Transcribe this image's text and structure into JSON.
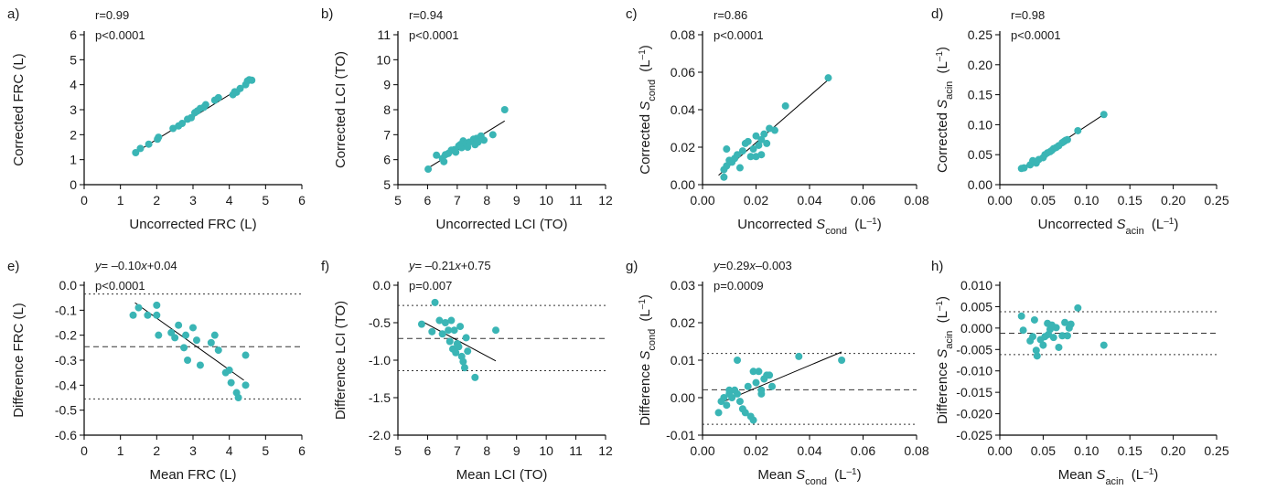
{
  "colors": {
    "point": "#3ab5b5",
    "axis": "#000000"
  },
  "chart_data": [
    {
      "type": "scatter",
      "panel": "a)",
      "xlabel": "Uncorrected FRC (L)",
      "ylabel": "Corrected FRC (L)",
      "xlim": [
        0,
        6
      ],
      "ylim": [
        0,
        6
      ],
      "xticks": [
        "0",
        "1",
        "2",
        "3",
        "4",
        "5",
        "6"
      ],
      "yticks": [
        "0",
        "1",
        "2",
        "3",
        "4",
        "5",
        "6"
      ],
      "stats": [
        "r=0.99",
        "p<0.0001"
      ],
      "fit": [
        [
          1.45,
          1.32
        ],
        [
          4.62,
          4.15
        ]
      ],
      "hlines": [],
      "points": [
        [
          1.42,
          1.28
        ],
        [
          1.55,
          1.45
        ],
        [
          1.78,
          1.62
        ],
        [
          2.02,
          1.82
        ],
        [
          2.05,
          1.9
        ],
        [
          2.45,
          2.25
        ],
        [
          2.6,
          2.35
        ],
        [
          2.7,
          2.45
        ],
        [
          2.85,
          2.62
        ],
        [
          2.95,
          2.68
        ],
        [
          3.05,
          2.88
        ],
        [
          3.12,
          2.95
        ],
        [
          3.2,
          3.05
        ],
        [
          3.3,
          3.1
        ],
        [
          3.35,
          3.2
        ],
        [
          3.6,
          3.38
        ],
        [
          3.7,
          3.48
        ],
        [
          4.1,
          3.6
        ],
        [
          4.15,
          3.72
        ],
        [
          4.2,
          3.7
        ],
        [
          4.3,
          3.85
        ],
        [
          4.45,
          4.0
        ],
        [
          4.5,
          4.15
        ],
        [
          4.55,
          4.2
        ],
        [
          4.62,
          4.18
        ]
      ]
    },
    {
      "type": "scatter",
      "panel": "b)",
      "xlabel": "Uncorrected LCI (TO)",
      "ylabel": "Corrected LCI (TO)",
      "xlim": [
        5,
        12
      ],
      "ylim": [
        5,
        11
      ],
      "xticks": [
        "5",
        "6",
        "7",
        "8",
        "9",
        "10",
        "11",
        "12"
      ],
      "yticks": [
        "5",
        "6",
        "7",
        "8",
        "9",
        "10",
        "11"
      ],
      "stats": [
        "r=0.94",
        "p<0.0001"
      ],
      "fit": [
        [
          6.0,
          5.65
        ],
        [
          8.6,
          7.55
        ]
      ],
      "hlines": [],
      "points": [
        [
          6.02,
          5.62
        ],
        [
          6.3,
          6.18
        ],
        [
          6.5,
          6.05
        ],
        [
          6.55,
          5.92
        ],
        [
          6.6,
          6.2
        ],
        [
          6.7,
          6.25
        ],
        [
          6.8,
          6.38
        ],
        [
          6.9,
          6.4
        ],
        [
          6.95,
          6.3
        ],
        [
          7.05,
          6.55
        ],
        [
          7.1,
          6.6
        ],
        [
          7.15,
          6.48
        ],
        [
          7.2,
          6.75
        ],
        [
          7.3,
          6.65
        ],
        [
          7.35,
          6.5
        ],
        [
          7.4,
          6.7
        ],
        [
          7.55,
          6.82
        ],
        [
          7.6,
          6.6
        ],
        [
          7.65,
          6.85
        ],
        [
          7.7,
          6.7
        ],
        [
          7.8,
          6.95
        ],
        [
          7.9,
          6.78
        ],
        [
          8.2,
          7.0
        ],
        [
          8.6,
          8.0
        ]
      ]
    },
    {
      "type": "scatter",
      "panel": "c)",
      "xlabel": "Uncorrected S_cond (L⁻¹)",
      "ylabel": "Corrected S_cond (L⁻¹)",
      "xlim": [
        0,
        0.08
      ],
      "ylim": [
        0,
        0.08
      ],
      "xticks": [
        "0.00",
        "0.02",
        "0.04",
        "0.06",
        "0.08"
      ],
      "yticks": [
        "0.00",
        "0.02",
        "0.04",
        "0.06",
        "0.08"
      ],
      "stats": [
        "r=0.86",
        "p<0.0001"
      ],
      "fit": [
        [
          0.006,
          0.005
        ],
        [
          0.047,
          0.056
        ]
      ],
      "hlines": [],
      "points": [
        [
          0.008,
          0.004
        ],
        [
          0.008,
          0.008
        ],
        [
          0.009,
          0.01
        ],
        [
          0.009,
          0.019
        ],
        [
          0.01,
          0.013
        ],
        [
          0.011,
          0.012
        ],
        [
          0.012,
          0.014
        ],
        [
          0.013,
          0.016
        ],
        [
          0.014,
          0.009
        ],
        [
          0.015,
          0.018
        ],
        [
          0.016,
          0.022
        ],
        [
          0.017,
          0.023
        ],
        [
          0.018,
          0.015
        ],
        [
          0.019,
          0.019
        ],
        [
          0.02,
          0.026
        ],
        [
          0.02,
          0.015
        ],
        [
          0.021,
          0.021
        ],
        [
          0.022,
          0.016
        ],
        [
          0.022,
          0.024
        ],
        [
          0.023,
          0.027
        ],
        [
          0.024,
          0.022
        ],
        [
          0.025,
          0.03
        ],
        [
          0.027,
          0.029
        ],
        [
          0.031,
          0.042
        ],
        [
          0.047,
          0.057
        ]
      ]
    },
    {
      "type": "scatter",
      "panel": "d)",
      "xlabel": "Uncorrected S_acin (L⁻¹)",
      "ylabel": "Corrected S_acin (L⁻¹)",
      "xlim": [
        0,
        0.25
      ],
      "ylim": [
        0,
        0.25
      ],
      "xticks": [
        "0.00",
        "0.05",
        "0.10",
        "0.15",
        "0.20",
        "0.25"
      ],
      "yticks": [
        "0.00",
        "0.05",
        "0.10",
        "0.15",
        "0.20",
        "0.25"
      ],
      "stats": [
        "r=0.98",
        "p<0.0001"
      ],
      "fit": [
        [
          0.022,
          0.024
        ],
        [
          0.121,
          0.118
        ]
      ],
      "hlines": [],
      "points": [
        [
          0.025,
          0.027
        ],
        [
          0.028,
          0.028
        ],
        [
          0.035,
          0.033
        ],
        [
          0.038,
          0.04
        ],
        [
          0.042,
          0.036
        ],
        [
          0.045,
          0.042
        ],
        [
          0.05,
          0.045
        ],
        [
          0.052,
          0.05
        ],
        [
          0.055,
          0.053
        ],
        [
          0.058,
          0.055
        ],
        [
          0.06,
          0.057
        ],
        [
          0.062,
          0.06
        ],
        [
          0.065,
          0.062
        ],
        [
          0.068,
          0.065
        ],
        [
          0.072,
          0.07
        ],
        [
          0.074,
          0.072
        ],
        [
          0.076,
          0.074
        ],
        [
          0.078,
          0.075
        ],
        [
          0.09,
          0.09
        ],
        [
          0.12,
          0.117
        ]
      ]
    },
    {
      "type": "scatter",
      "panel": "e)",
      "xlabel": "Mean FRC (L)",
      "ylabel": "Difference FRC (L)",
      "xlim": [
        0,
        6
      ],
      "ylim": [
        -0.6,
        0.0
      ],
      "xticks": [
        "0",
        "1",
        "2",
        "3",
        "4",
        "5",
        "6"
      ],
      "yticks": [
        "0.0",
        "-0.1",
        "-0.2",
        "-0.3",
        "-0.4",
        "-0.5",
        "-0.6"
      ],
      "stats": [
        "y= –0.10x+0.04",
        "p<0.0001"
      ],
      "fit": [
        [
          1.4,
          -0.07
        ],
        [
          4.4,
          -0.38
        ]
      ],
      "hlines": [
        {
          "y": -0.035,
          "style": "dotted"
        },
        {
          "y": -0.246,
          "style": "dashed"
        },
        {
          "y": -0.455,
          "style": "dotted"
        }
      ],
      "points": [
        [
          1.35,
          -0.12
        ],
        [
          1.5,
          -0.09
        ],
        [
          1.75,
          -0.12
        ],
        [
          2.0,
          -0.08
        ],
        [
          2.0,
          -0.12
        ],
        [
          2.05,
          -0.2
        ],
        [
          2.4,
          -0.19
        ],
        [
          2.5,
          -0.21
        ],
        [
          2.6,
          -0.16
        ],
        [
          2.75,
          -0.25
        ],
        [
          2.8,
          -0.2
        ],
        [
          2.85,
          -0.3
        ],
        [
          3.0,
          -0.17
        ],
        [
          3.1,
          -0.22
        ],
        [
          3.2,
          -0.32
        ],
        [
          3.5,
          -0.23
        ],
        [
          3.6,
          -0.2
        ],
        [
          3.7,
          -0.26
        ],
        [
          3.9,
          -0.35
        ],
        [
          4.0,
          -0.34
        ],
        [
          4.05,
          -0.39
        ],
        [
          4.2,
          -0.43
        ],
        [
          4.25,
          -0.45
        ],
        [
          4.45,
          -0.28
        ],
        [
          4.45,
          -0.4
        ]
      ]
    },
    {
      "type": "scatter",
      "panel": "f)",
      "xlabel": "Mean LCI (TO)",
      "ylabel": "Difference LCI (TO)",
      "xlim": [
        5,
        12
      ],
      "ylim": [
        -2.0,
        0.0
      ],
      "xticks": [
        "5",
        "6",
        "7",
        "8",
        "9",
        "10",
        "11",
        "12"
      ],
      "yticks": [
        "0.0",
        "-0.5",
        "-1.0",
        "-1.5",
        "-2.0"
      ],
      "stats": [
        "y= –0.21x+0.75",
        "p=0.007"
      ],
      "fit": [
        [
          5.8,
          -0.48
        ],
        [
          8.3,
          -1.01
        ]
      ],
      "hlines": [
        {
          "y": -0.27,
          "style": "dotted"
        },
        {
          "y": -0.71,
          "style": "dashed"
        },
        {
          "y": -1.14,
          "style": "dotted"
        }
      ],
      "points": [
        [
          5.8,
          -0.52
        ],
        [
          6.15,
          -0.62
        ],
        [
          6.25,
          -0.23
        ],
        [
          6.4,
          -0.47
        ],
        [
          6.5,
          -0.65
        ],
        [
          6.6,
          -0.5
        ],
        [
          6.7,
          -0.6
        ],
        [
          6.75,
          -0.75
        ],
        [
          6.8,
          -0.47
        ],
        [
          6.85,
          -0.85
        ],
        [
          6.9,
          -0.6
        ],
        [
          6.95,
          -0.9
        ],
        [
          7.0,
          -0.78
        ],
        [
          7.05,
          -0.82
        ],
        [
          7.1,
          -0.55
        ],
        [
          7.15,
          -0.95
        ],
        [
          7.2,
          -1.02
        ],
        [
          7.25,
          -1.1
        ],
        [
          7.3,
          -0.7
        ],
        [
          7.35,
          -0.88
        ],
        [
          7.6,
          -1.23
        ],
        [
          8.3,
          -0.6
        ]
      ]
    },
    {
      "type": "scatter",
      "panel": "g)",
      "xlabel": "Mean S_cond (L⁻¹)",
      "ylabel": "Difference S_cond (L⁻¹)",
      "xlim": [
        0,
        0.08
      ],
      "ylim": [
        -0.01,
        0.03
      ],
      "xticks": [
        "0.00",
        "0.02",
        "0.04",
        "0.06",
        "0.08"
      ],
      "yticks": [
        "0.03",
        "0.02",
        "0.01",
        "0.00",
        "-0.01"
      ],
      "stats": [
        "y=0.29x–0.003",
        "p=0.0009"
      ],
      "fit": [
        [
          0.008,
          -0.001
        ],
        [
          0.052,
          0.0122
        ]
      ],
      "hlines": [
        {
          "y": 0.0118,
          "style": "dotted"
        },
        {
          "y": 0.0021,
          "style": "dashed"
        },
        {
          "y": -0.0071,
          "style": "dotted"
        }
      ],
      "points": [
        [
          0.006,
          -0.004
        ],
        [
          0.007,
          -0.001
        ],
        [
          0.008,
          0.0
        ],
        [
          0.009,
          -0.002
        ],
        [
          0.01,
          0.001
        ],
        [
          0.01,
          0.002
        ],
        [
          0.011,
          0.0
        ],
        [
          0.012,
          0.002
        ],
        [
          0.013,
          0.001
        ],
        [
          0.013,
          0.01
        ],
        [
          0.014,
          -0.001
        ],
        [
          0.015,
          -0.003
        ],
        [
          0.016,
          -0.004
        ],
        [
          0.017,
          0.003
        ],
        [
          0.018,
          -0.005
        ],
        [
          0.019,
          0.007
        ],
        [
          0.019,
          -0.006
        ],
        [
          0.02,
          0.004
        ],
        [
          0.021,
          0.007
        ],
        [
          0.022,
          0.002
        ],
        [
          0.022,
          0.001
        ],
        [
          0.023,
          0.005
        ],
        [
          0.024,
          0.006
        ],
        [
          0.025,
          0.006
        ],
        [
          0.026,
          0.003
        ],
        [
          0.036,
          0.011
        ],
        [
          0.052,
          0.01
        ]
      ]
    },
    {
      "type": "scatter",
      "panel": "h)",
      "xlabel": "Mean S_acin (L⁻¹)",
      "ylabel": "Difference S_acin (L⁻¹)",
      "xlim": [
        0,
        0.25
      ],
      "ylim": [
        -0.025,
        0.01
      ],
      "xticks": [
        "0.00",
        "0.05",
        "0.10",
        "0.15",
        "0.20",
        "0.25"
      ],
      "yticks": [
        "0.010",
        "0.005",
        "0.000",
        "-0.005",
        "-0.010",
        "-0.015",
        "-0.020",
        "-0.025"
      ],
      "stats": [],
      "fit": null,
      "hlines": [
        {
          "y": 0.0038,
          "style": "dotted"
        },
        {
          "y": -0.0012,
          "style": "dashed"
        },
        {
          "y": -0.0062,
          "style": "dotted"
        }
      ],
      "points": [
        [
          0.025,
          0.0028
        ],
        [
          0.027,
          -0.0005
        ],
        [
          0.035,
          -0.003
        ],
        [
          0.038,
          -0.002
        ],
        [
          0.04,
          0.0019
        ],
        [
          0.042,
          -0.0052
        ],
        [
          0.043,
          -0.0065
        ],
        [
          0.047,
          -0.0027
        ],
        [
          0.05,
          -0.004
        ],
        [
          0.052,
          -0.002
        ],
        [
          0.055,
          0.0011
        ],
        [
          0.056,
          -0.0015
        ],
        [
          0.058,
          -0.0003
        ],
        [
          0.06,
          0.0007
        ],
        [
          0.062,
          -0.0022
        ],
        [
          0.065,
          0.0001
        ],
        [
          0.068,
          -0.0045
        ],
        [
          0.072,
          -0.0018
        ],
        [
          0.075,
          0.0013
        ],
        [
          0.078,
          -0.0018
        ],
        [
          0.08,
          0.0
        ],
        [
          0.082,
          0.0009
        ],
        [
          0.09,
          0.0047
        ],
        [
          0.12,
          -0.004
        ]
      ]
    }
  ]
}
